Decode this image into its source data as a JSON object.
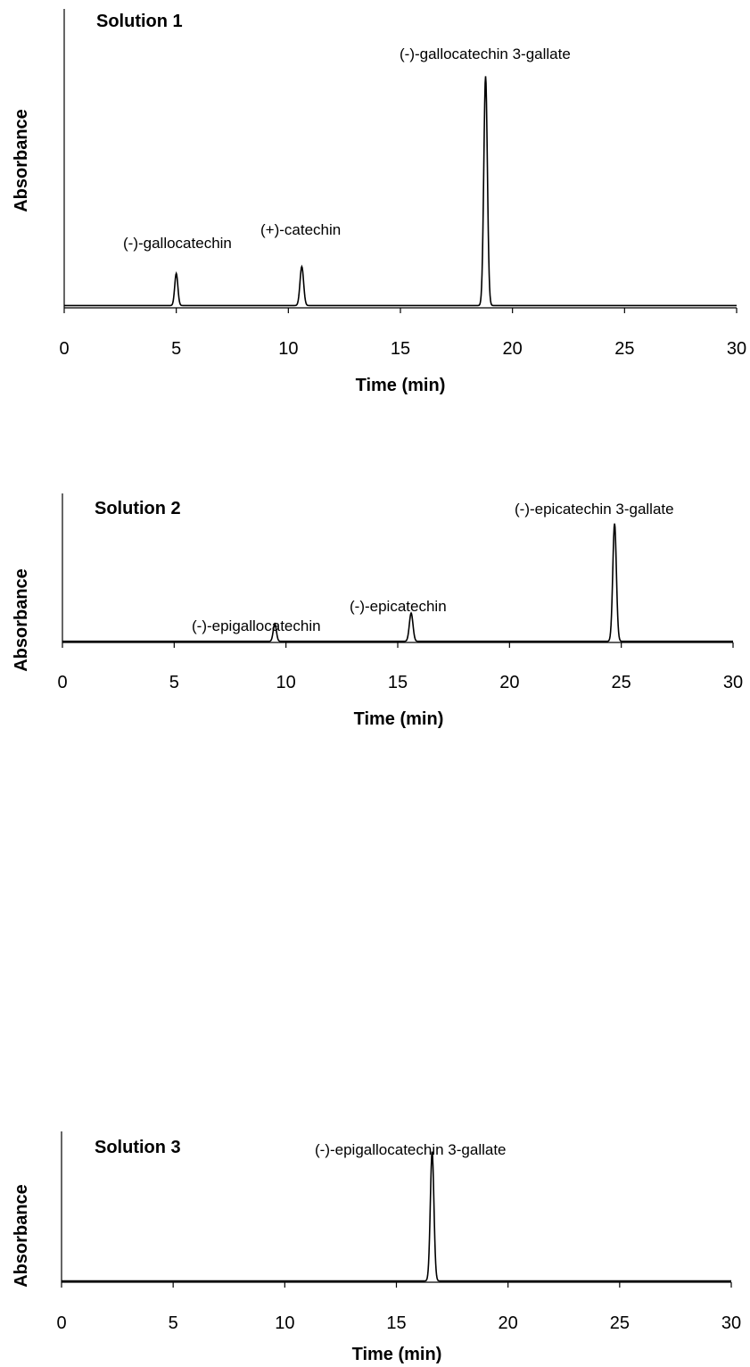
{
  "chart_data": [
    {
      "type": "line",
      "title": "Solution 1",
      "xlabel": "Time (min)",
      "ylabel": "Absorbance",
      "xlim": [
        0,
        30
      ],
      "ylim": [
        0,
        1.0
      ],
      "xticks": [
        0,
        5,
        10,
        15,
        20,
        25,
        30
      ],
      "tick_labels": [
        "0",
        "5",
        "10",
        "15",
        "20",
        "25",
        "30"
      ],
      "baseline": 0.01,
      "peaks": [
        {
          "name": "(-)-gallocatechin",
          "rt": 5.0,
          "height": 0.14,
          "width": 0.07
        },
        {
          "name": "(+)-catechin",
          "rt": 10.6,
          "height": 0.17,
          "width": 0.08
        },
        {
          "name": "(-)-gallocatechin 3-gallate",
          "rt": 18.8,
          "height": 1.0,
          "width": 0.08
        }
      ]
    },
    {
      "type": "line",
      "title": "Solution 2",
      "xlabel": "Time (min)",
      "ylabel": "Absorbance",
      "xlim": [
        0,
        30
      ],
      "ylim": [
        0,
        1.0
      ],
      "xticks": [
        0,
        5,
        10,
        15,
        20,
        25,
        30
      ],
      "tick_labels": [
        "0",
        "5",
        "10",
        "15",
        "20",
        "25",
        "30"
      ],
      "baseline": 0.01,
      "peaks": [
        {
          "name": "(-)-epigallocatechin",
          "rt": 9.5,
          "height": 0.15,
          "width": 0.07
        },
        {
          "name": "(-)-epicatechin",
          "rt": 15.6,
          "height": 0.24,
          "width": 0.08
        },
        {
          "name": "(-)-epicatechin 3-gallate",
          "rt": 24.7,
          "height": 1.0,
          "width": 0.08
        }
      ]
    },
    {
      "type": "line",
      "title": "Solution 3",
      "xlabel": "Time (min)",
      "ylabel": "Absorbance",
      "xlim": [
        0,
        30
      ],
      "ylim": [
        0,
        1.0
      ],
      "xticks": [
        0,
        5,
        10,
        15,
        20,
        25,
        30
      ],
      "tick_labels": [
        "0",
        "5",
        "10",
        "15",
        "20",
        "25",
        "30"
      ],
      "baseline": 0.01,
      "peaks": [
        {
          "name": "(-)-epigallocatechin 3-gallate",
          "rt": 16.6,
          "height": 1.0,
          "width": 0.08
        }
      ]
    }
  ]
}
